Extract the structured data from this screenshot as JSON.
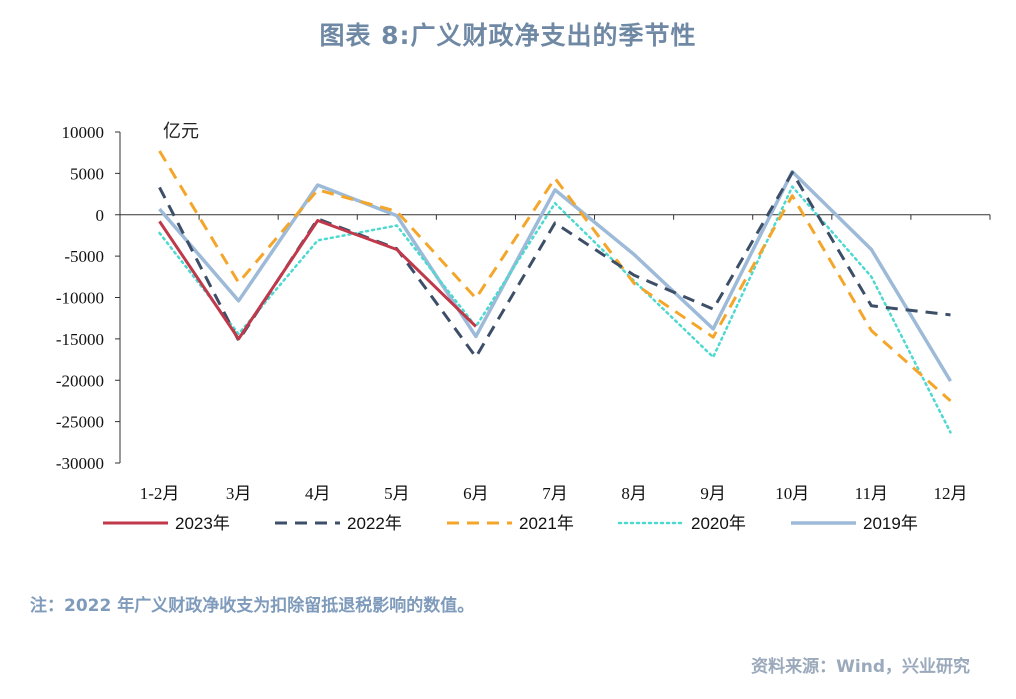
{
  "title": "图表 8:广义财政净支出的季节性",
  "note": "注：2022 年广义财政净收支为扣除留抵退税影响的数值。",
  "source": "资料来源：Wind，兴业研究",
  "colors": {
    "s2023": "#c0394b",
    "s2022": "#3d4f68",
    "s2021": "#f4a62a",
    "s2020": "#4dd9d0",
    "s2019": "#9dbad8",
    "axis": "#333333"
  },
  "chart_data": {
    "type": "line",
    "unit_label": "亿元",
    "categories": [
      "1-2月",
      "3月",
      "4月",
      "5月",
      "6月",
      "7月",
      "8月",
      "9月",
      "10月",
      "11月",
      "12月"
    ],
    "ylim": [
      -30000,
      10000
    ],
    "yticks": [
      10000,
      5000,
      0,
      -5000,
      -10000,
      -15000,
      -20000,
      -25000,
      -30000
    ],
    "ytick_labels": [
      "10000",
      "5000",
      "0",
      "-5000",
      "-10000",
      "-15000",
      "-20000",
      "-25000",
      "-30000"
    ],
    "legend_position": "bottom",
    "grid": false,
    "series": [
      {
        "name": "2023年",
        "key": "s2023",
        "style": "solid",
        "values": [
          -800,
          -15000,
          -700,
          -4200,
          -13500,
          null,
          null,
          null,
          null,
          null,
          null
        ]
      },
      {
        "name": "2022年",
        "key": "s2022",
        "style": "dashed",
        "values": [
          3300,
          -15200,
          -500,
          -4100,
          -17200,
          -1000,
          -7300,
          -11400,
          5100,
          -11000,
          -12100
        ]
      },
      {
        "name": "2021年",
        "key": "s2021",
        "style": "dashed",
        "values": [
          7700,
          -8200,
          3000,
          400,
          -10100,
          4400,
          -8300,
          -14800,
          2300,
          -14000,
          -22500
        ]
      },
      {
        "name": "2020年",
        "key": "s2020",
        "style": "dotted",
        "values": [
          -2200,
          -14400,
          -3100,
          -1300,
          -13500,
          1400,
          -8000,
          -17200,
          3400,
          -7500,
          -26300
        ]
      },
      {
        "name": "2019年",
        "key": "s2019",
        "style": "solid",
        "values": [
          700,
          -10400,
          3600,
          -100,
          -14700,
          3000,
          -4800,
          -13800,
          5200,
          -4200,
          -20100
        ]
      }
    ]
  }
}
